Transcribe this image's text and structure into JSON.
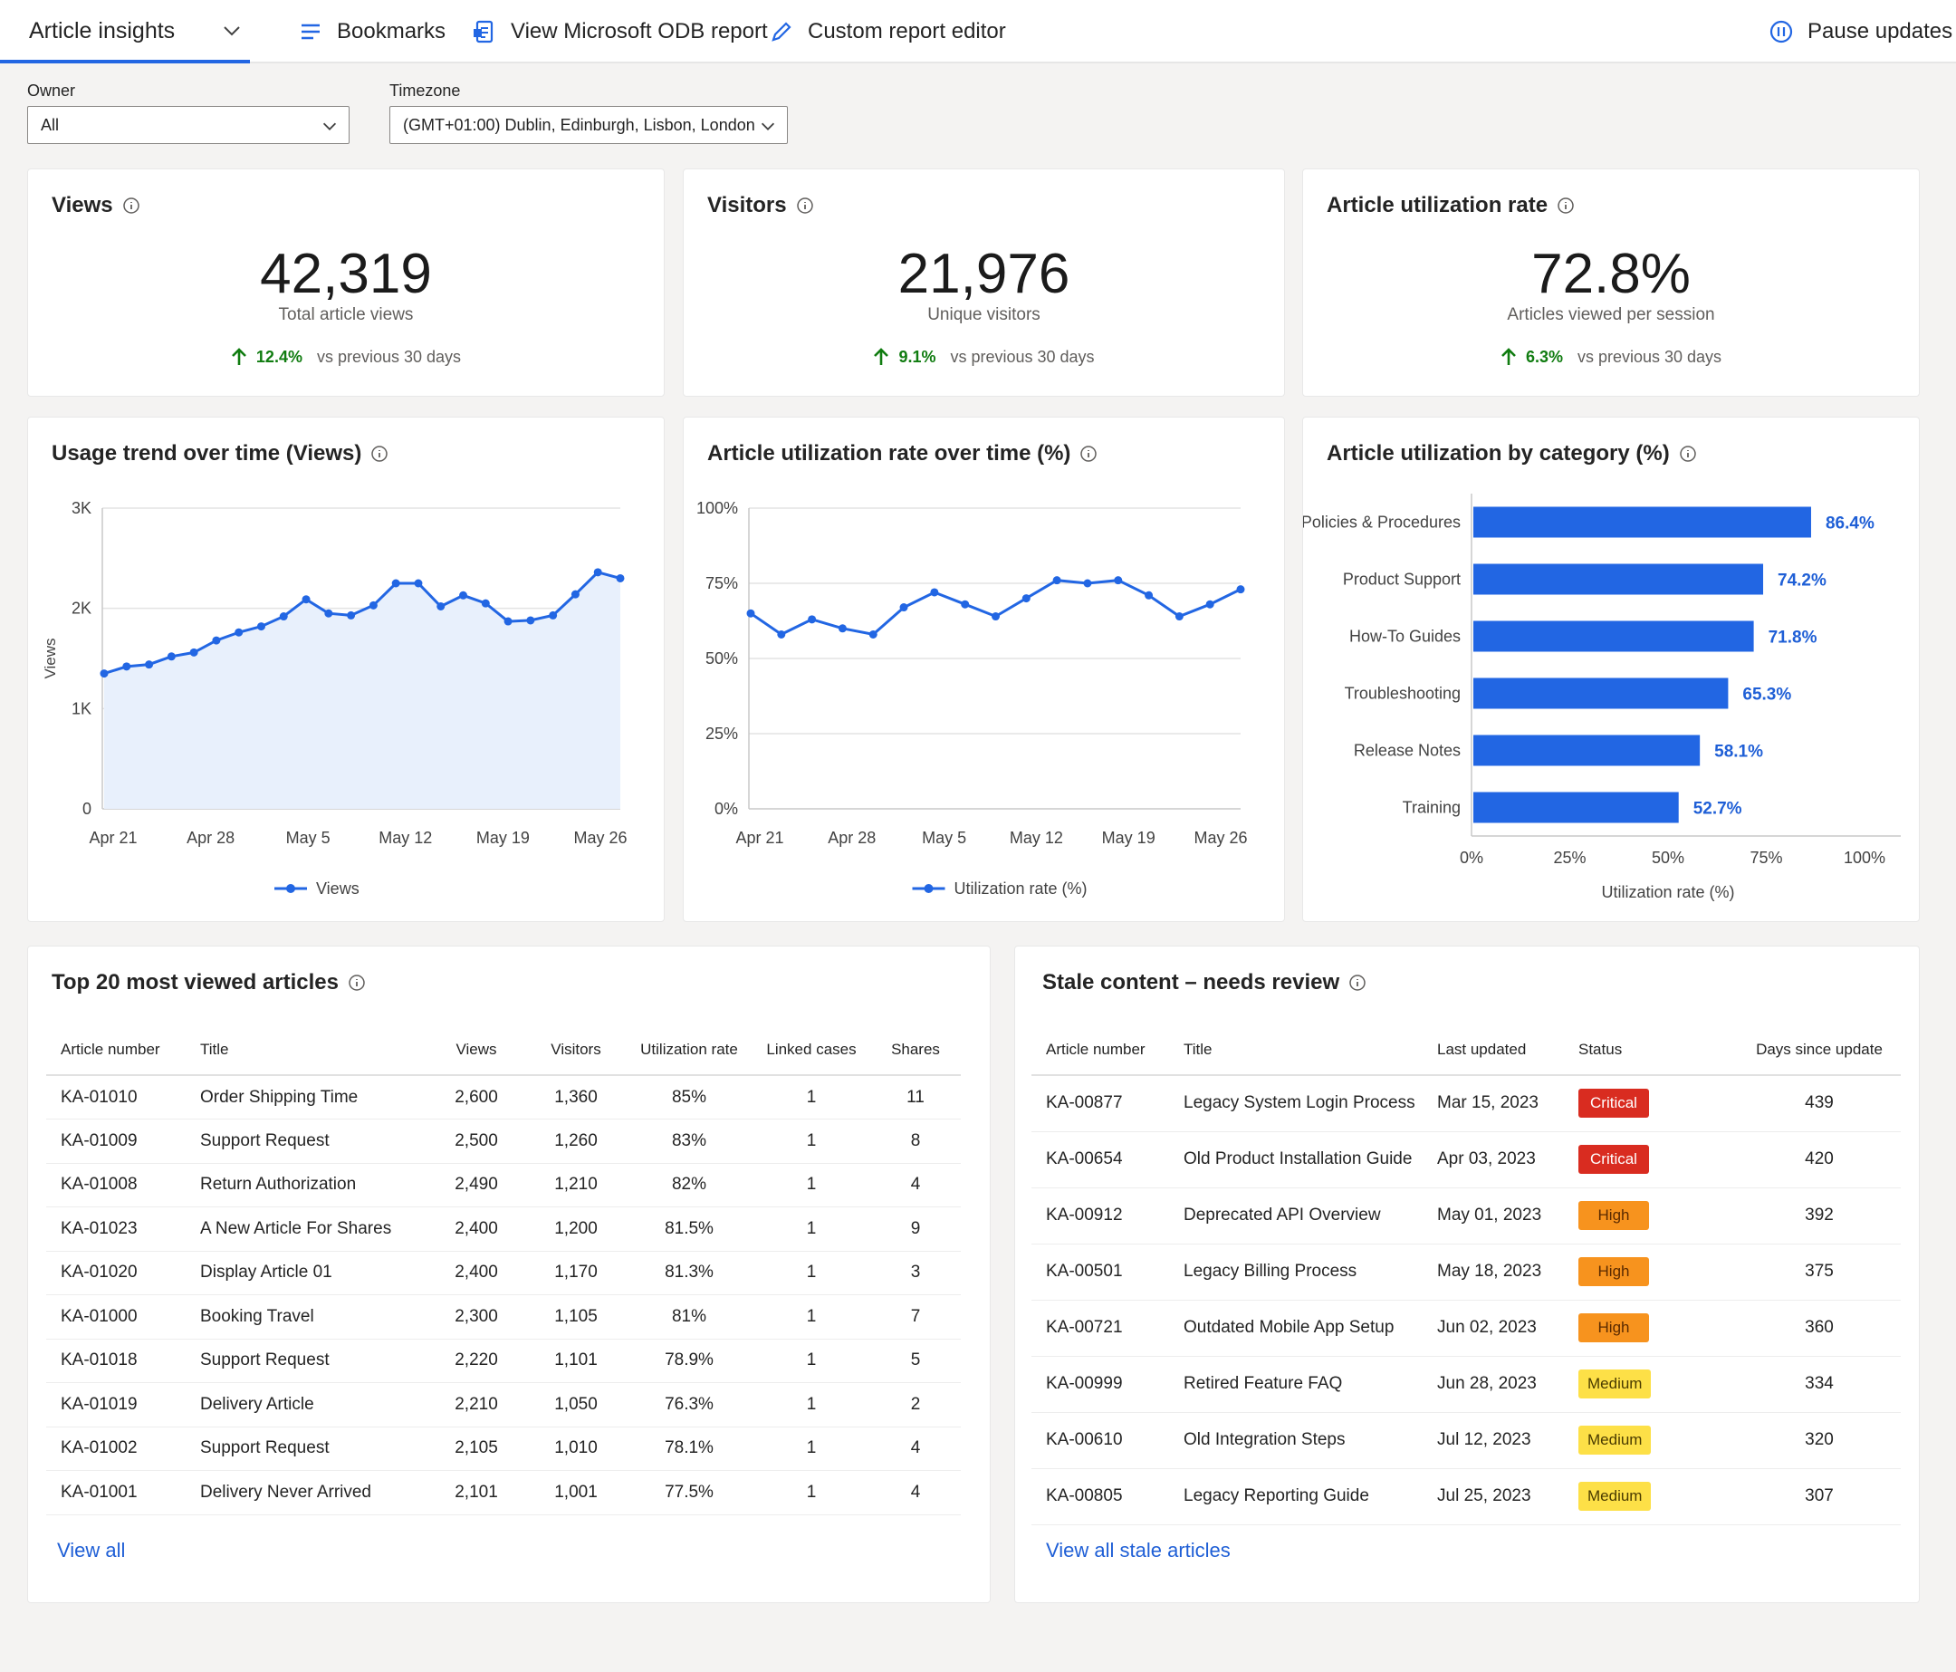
{
  "topbar": {
    "active_tab": "Article insights",
    "bookmarks": "Bookmarks",
    "odb_report": "View Microsoft ODB report",
    "custom_editor": "Custom report editor",
    "pause": "Pause updates"
  },
  "filters": {
    "owner_label": "Owner",
    "owner_value": "All",
    "timezone_label": "Timezone",
    "timezone_value": "(GMT+01:00) Dublin, Edinburgh, Lisbon, London"
  },
  "kpis": [
    {
      "title": "Views",
      "value": "42,319",
      "subtitle": "Total article views",
      "delta": "12.4%",
      "compare": "vs previous 30 days"
    },
    {
      "title": "Visitors",
      "value": "21,976",
      "subtitle": "Unique visitors",
      "delta": "9.1%",
      "compare": "vs previous 30 days"
    },
    {
      "title": "Article utilization rate",
      "value": "72.8%",
      "subtitle": "Articles viewed per session",
      "delta": "6.3%",
      "compare": "vs previous 30 days"
    }
  ],
  "accent_color": "#2266e3",
  "positive_color": "#107c10",
  "chart_data": [
    {
      "type": "area",
      "title": "Usage trend over time (Views)",
      "ylabel": "Views",
      "ylim": [
        0,
        3000
      ],
      "y_ticks": [
        "0",
        "1K",
        "2K",
        "3K"
      ],
      "x_ticks": [
        "Apr 21",
        "Apr 28",
        "May 5",
        "May 12",
        "May 19",
        "May 26"
      ],
      "series": [
        {
          "name": "Views",
          "values": [
            1350,
            1420,
            1440,
            1520,
            1560,
            1680,
            1760,
            1820,
            1920,
            2090,
            1950,
            1930,
            2030,
            2250,
            2250,
            2020,
            2130,
            2050,
            1870,
            1880,
            1930,
            2140,
            2360,
            2300
          ]
        }
      ]
    },
    {
      "type": "line",
      "title": "Article utilization rate over time (%)",
      "ylim": [
        0,
        100
      ],
      "y_ticks": [
        "0%",
        "25%",
        "50%",
        "75%",
        "100%"
      ],
      "x_ticks": [
        "Apr 21",
        "Apr 28",
        "May 5",
        "May 12",
        "May 19",
        "May 26"
      ],
      "series": [
        {
          "name": "Utilization rate (%)",
          "values": [
            65,
            58,
            63,
            60,
            58,
            67,
            72,
            68,
            64,
            70,
            76,
            75,
            76,
            71,
            64,
            68,
            73
          ]
        }
      ]
    },
    {
      "type": "bar",
      "title": "Article utilization by category (%)",
      "xlabel": "Utilization rate (%)",
      "xlim": [
        0,
        100
      ],
      "x_ticks": [
        "0%",
        "25%",
        "50%",
        "75%",
        "100%"
      ],
      "categories": [
        "Policies & Procedures",
        "Product Support",
        "How-To Guides",
        "Troubleshooting",
        "Release Notes",
        "Training"
      ],
      "values": [
        86.4,
        74.2,
        71.8,
        65.3,
        58.1,
        52.7
      ],
      "labels": [
        "86.4%",
        "74.2%",
        "71.8%",
        "65.3%",
        "58.1%",
        "52.7%"
      ]
    }
  ],
  "top_articles": {
    "title": "Top 20 most viewed articles",
    "columns": [
      "Article number",
      "Title",
      "Views",
      "Visitors",
      "Utilization rate",
      "Linked cases",
      "Shares"
    ],
    "rows": [
      [
        "KA-01010",
        "Order Shipping Time",
        "2,600",
        "1,360",
        "85%",
        "1",
        "11"
      ],
      [
        "KA-01009",
        "Support Request",
        "2,500",
        "1,260",
        "83%",
        "1",
        "8"
      ],
      [
        "KA-01008",
        "Return Authorization",
        "2,490",
        "1,210",
        "82%",
        "1",
        "4"
      ],
      [
        "KA-01023",
        "A New Article For Shares",
        "2,400",
        "1,200",
        "81.5%",
        "1",
        "9"
      ],
      [
        "KA-01020",
        "Display Article 01",
        "2,400",
        "1,170",
        "81.3%",
        "1",
        "3"
      ],
      [
        "KA-01000",
        "Booking Travel",
        "2,300",
        "1,105",
        "81%",
        "1",
        "7"
      ],
      [
        "KA-01018",
        "Support Request",
        "2,220",
        "1,101",
        "78.9%",
        "1",
        "5"
      ],
      [
        "KA-01019",
        "Delivery Article",
        "2,210",
        "1,050",
        "76.3%",
        "1",
        "2"
      ],
      [
        "KA-01002",
        "Support Request",
        "2,105",
        "1,010",
        "78.1%",
        "1",
        "4"
      ],
      [
        "KA-01001",
        "Delivery Never Arrived",
        "2,101",
        "1,001",
        "77.5%",
        "1",
        "4"
      ]
    ],
    "view_all": "View all"
  },
  "stale": {
    "title": "Stale content – needs review",
    "columns": [
      "Article number",
      "Title",
      "Last updated",
      "Status",
      "Days since update"
    ],
    "rows": [
      [
        "KA-00877",
        "Legacy System Login Process",
        "Mar 15, 2023",
        "Critical",
        "439"
      ],
      [
        "KA-00654",
        "Old Product Installation Guide",
        "Apr 03, 2023",
        "Critical",
        "420"
      ],
      [
        "KA-00912",
        "Deprecated API Overview",
        "May 01, 2023",
        "High",
        "392"
      ],
      [
        "KA-00501",
        "Legacy Billing Process",
        "May 18, 2023",
        "High",
        "375"
      ],
      [
        "KA-00721",
        "Outdated Mobile App Setup",
        "Jun 02, 2023",
        "High",
        "360"
      ],
      [
        "KA-00999",
        "Retired Feature FAQ",
        "Jun 28, 2023",
        "Medium",
        "334"
      ],
      [
        "KA-00610",
        "Old Integration Steps",
        "Jul 12, 2023",
        "Medium",
        "320"
      ],
      [
        "KA-00805",
        "Legacy Reporting Guide",
        "Jul 25, 2023",
        "Medium",
        "307"
      ]
    ],
    "status_colors": {
      "Critical": "#d92c20",
      "High": "#f7931e",
      "Medium": "#fde047"
    },
    "view_all": "View all stale articles"
  }
}
